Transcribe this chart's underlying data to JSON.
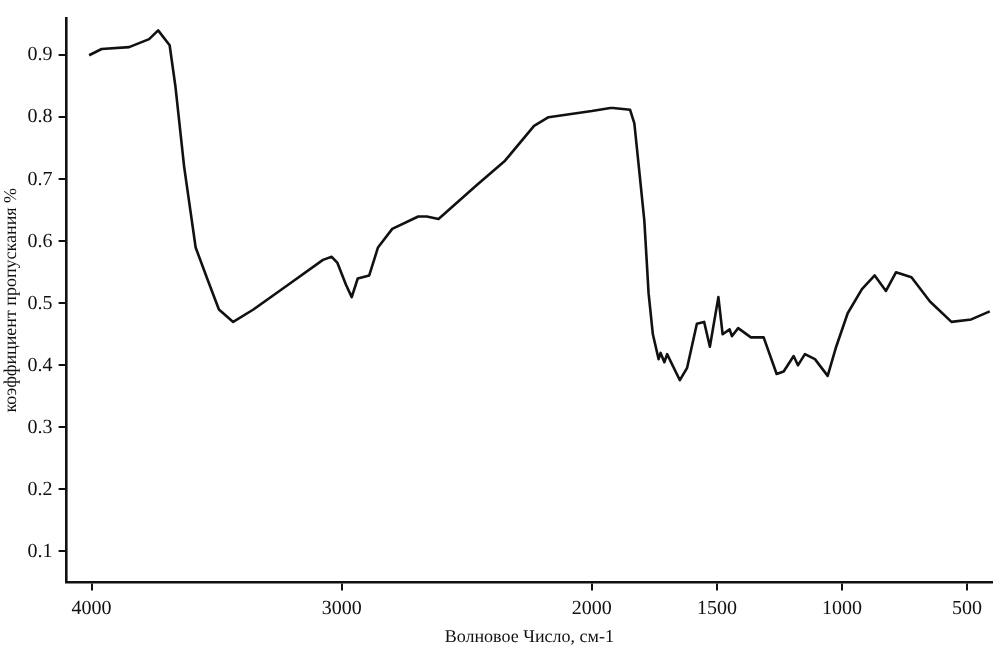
{
  "chart_data": {
    "type": "line",
    "xlabel": "Волновое Число, см-1",
    "ylabel": "коэффициент пропускания %",
    "xlim": [
      4100,
      400
    ],
    "xticks": [
      4000,
      3000,
      2000,
      1500,
      1000,
      500
    ],
    "ylim": [
      0.05,
      0.96
    ],
    "yticks": [
      0.1,
      0.2,
      0.3,
      0.4,
      0.5,
      0.6,
      0.7,
      0.8,
      0.9
    ],
    "grid": false,
    "legend": false,
    "marker": "none",
    "line_style": "solid",
    "series": [
      {
        "color": "#111111",
        "x": [
          4010,
          3960,
          3850,
          3770,
          3734,
          3688,
          3665,
          3630,
          3584,
          3538,
          3491,
          3434,
          3353,
          3214,
          3075,
          3040,
          3017,
          2983,
          2960,
          2936,
          2890,
          2855,
          2798,
          2694,
          2660,
          2613,
          2462,
          2347,
          2231,
          2173,
          2000,
          1926,
          1915,
          1847,
          1830,
          1812,
          1790,
          1773,
          1756,
          1733,
          1725,
          1710,
          1699,
          1648,
          1619,
          1580,
          1551,
          1528,
          1494,
          1477,
          1449,
          1440,
          1415,
          1364,
          1313,
          1261,
          1233,
          1193,
          1176,
          1148,
          1108,
          1057,
          1023,
          977,
          920,
          869,
          824,
          784,
          722,
          648,
          562,
          483,
          409
        ],
        "values": [
          0.9,
          0.91,
          0.913,
          0.926,
          0.94,
          0.916,
          0.85,
          0.72,
          0.59,
          0.54,
          0.49,
          0.47,
          0.49,
          0.53,
          0.57,
          0.575,
          0.565,
          0.53,
          0.51,
          0.54,
          0.545,
          0.59,
          0.62,
          0.64,
          0.64,
          0.636,
          0.69,
          0.73,
          0.786,
          0.8,
          0.81,
          0.815,
          0.815,
          0.812,
          0.79,
          0.72,
          0.633,
          0.516,
          0.45,
          0.41,
          0.42,
          0.405,
          0.418,
          0.376,
          0.396,
          0.467,
          0.47,
          0.43,
          0.51,
          0.45,
          0.458,
          0.447,
          0.46,
          0.445,
          0.445,
          0.386,
          0.39,
          0.415,
          0.4,
          0.418,
          0.41,
          0.383,
          0.43,
          0.484,
          0.523,
          0.545,
          0.52,
          0.55,
          0.542,
          0.503,
          0.47,
          0.474,
          0.487
        ]
      }
    ]
  }
}
